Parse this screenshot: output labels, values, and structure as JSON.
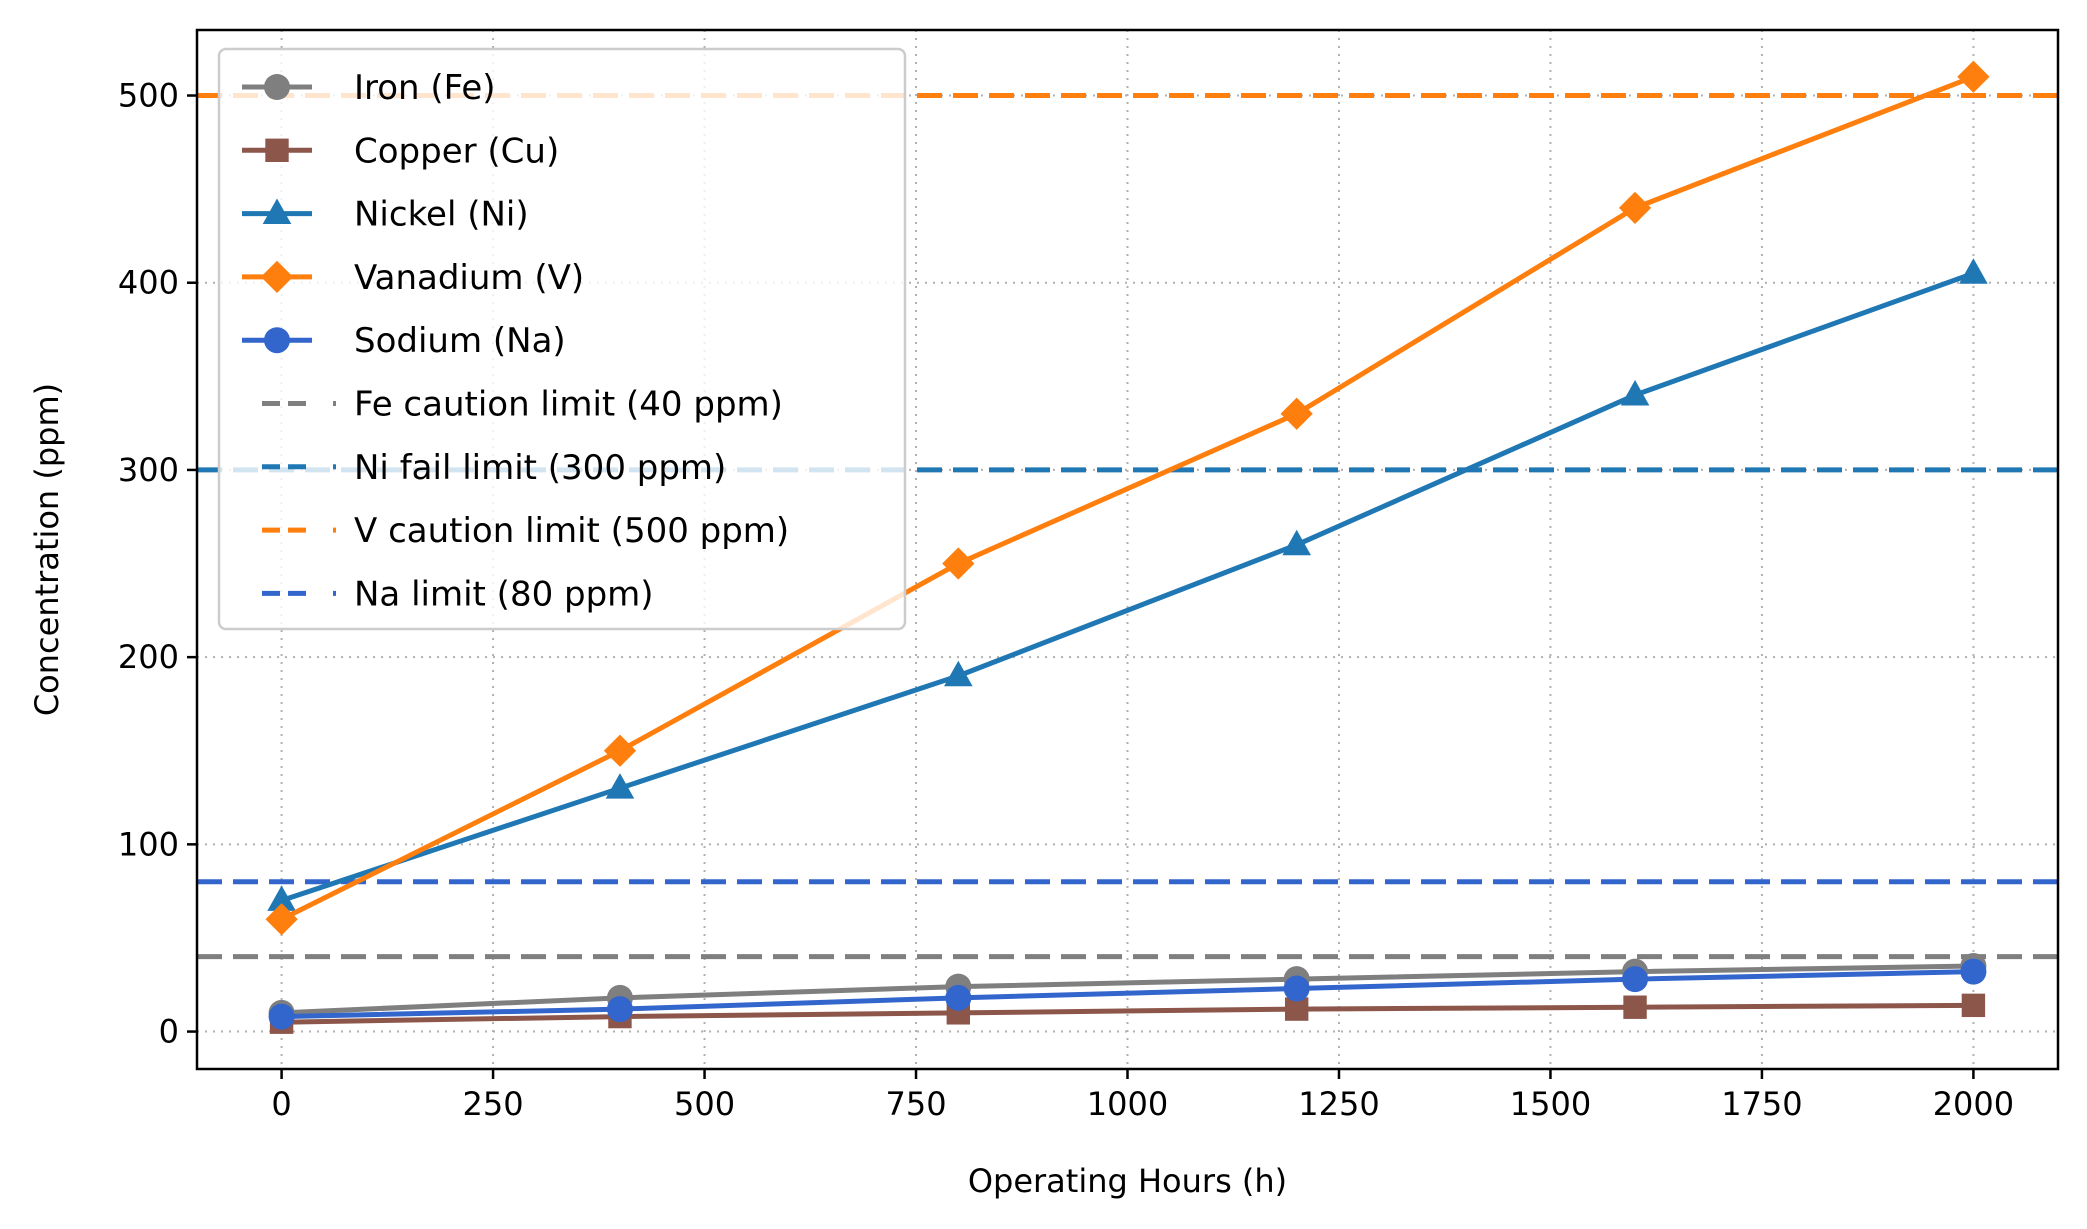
{
  "chart_data": {
    "type": "line",
    "title": "",
    "xlabel": "Operating Hours (h)",
    "ylabel": "Concentration (ppm)",
    "xlim": [
      -100,
      2100
    ],
    "ylim": [
      -20,
      535
    ],
    "xticks": [
      0,
      250,
      500,
      750,
      1000,
      1250,
      1500,
      1750,
      2000
    ],
    "yticks": [
      0,
      100,
      200,
      300,
      400,
      500
    ],
    "grid": true,
    "grid_style": "dotted",
    "legend_position": "top-left",
    "x": [
      0,
      400,
      800,
      1200,
      1600,
      2000
    ],
    "series": [
      {
        "name": "Iron (Fe)",
        "color": "#7f7f7f",
        "marker": "circle",
        "values": [
          10,
          18,
          24,
          28,
          32,
          35
        ]
      },
      {
        "name": "Copper (Cu)",
        "color": "#8c564b",
        "marker": "square",
        "values": [
          5,
          8,
          10,
          12,
          13,
          14
        ]
      },
      {
        "name": "Nickel (Ni)",
        "color": "#1f77b4",
        "marker": "triangle",
        "values": [
          70,
          130,
          190,
          260,
          340,
          405
        ]
      },
      {
        "name": "Vanadium (V)",
        "color": "#ff7f0e",
        "marker": "diamond",
        "values": [
          60,
          150,
          250,
          330,
          440,
          510
        ]
      },
      {
        "name": "Sodium (Na)",
        "color": "#3366cc",
        "marker": "circle",
        "values": [
          8,
          12,
          18,
          23,
          28,
          32
        ]
      }
    ],
    "reference_lines": [
      {
        "name": "Fe caution limit (40 ppm)",
        "color": "#7f7f7f",
        "value": 40,
        "style": "dashed"
      },
      {
        "name": "Ni fail limit (300 ppm)",
        "color": "#1f77b4",
        "value": 300,
        "style": "dashed"
      },
      {
        "name": "V caution limit (500 ppm)",
        "color": "#ff7f0e",
        "value": 500,
        "style": "dashed"
      },
      {
        "name": "Na limit (80 ppm)",
        "color": "#3366cc",
        "value": 80,
        "style": "dashed"
      }
    ]
  }
}
